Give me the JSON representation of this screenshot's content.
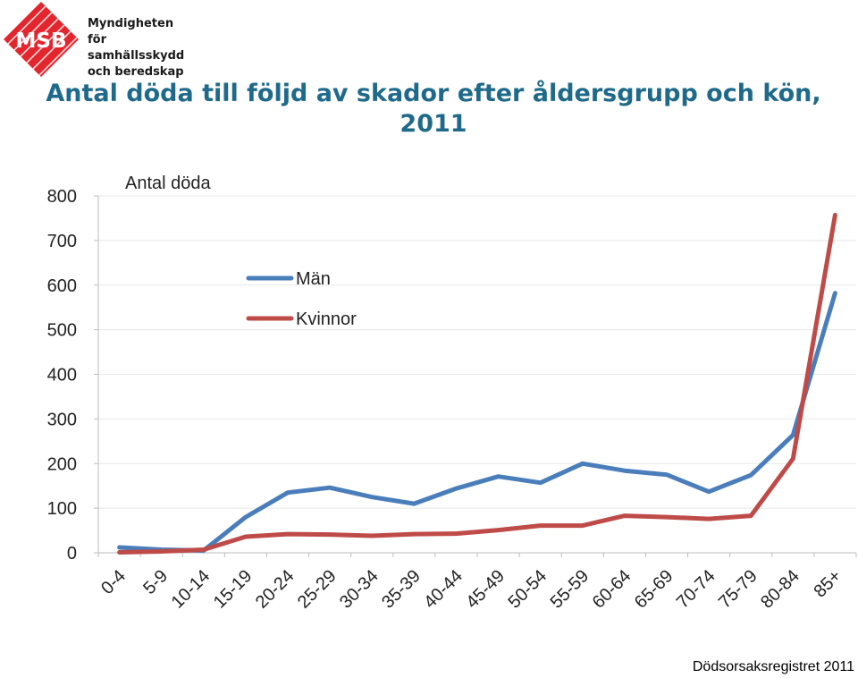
{
  "logo": {
    "abbr": "MSB",
    "lines": [
      "Myndigheten för",
      "samhällsskydd",
      "och beredskap"
    ],
    "color": "#e3262e"
  },
  "title_line1": "Antal döda till följd av skador efter åldersgrupp och kön,",
  "title_line2": "2011",
  "source": "Dödsorsaksregistret 2011",
  "colors": {
    "men": "#4a7ebb",
    "women": "#be4b48",
    "title": "#1f6a8a"
  },
  "chart_data": {
    "type": "line",
    "title": "Antal döda till följd av skador efter åldersgrupp och kön, 2011",
    "ylabel": "Antal döda",
    "xlabel": "",
    "ylim": [
      0,
      800
    ],
    "yticks": [
      0,
      100,
      200,
      300,
      400,
      500,
      600,
      700,
      800
    ],
    "grid": true,
    "legend_position": "top-left",
    "categories": [
      "0-4",
      "5-9",
      "10-14",
      "15-19",
      "20-24",
      "25-29",
      "30-34",
      "35-39",
      "40-44",
      "45-49",
      "50-54",
      "55-59",
      "60-64",
      "65-69",
      "70-74",
      "75-79",
      "80-84",
      "85+"
    ],
    "series": [
      {
        "name": "Män",
        "color": "#4a7ebb",
        "values": [
          12,
          7,
          5,
          80,
          135,
          146,
          125,
          110,
          144,
          171,
          157,
          200,
          184,
          175,
          137,
          174,
          264,
          582
        ]
      },
      {
        "name": "Kvinnor",
        "color": "#be4b48",
        "values": [
          1,
          3,
          7,
          36,
          42,
          41,
          38,
          42,
          43,
          51,
          61,
          61,
          83,
          80,
          76,
          83,
          211,
          757
        ]
      }
    ]
  }
}
